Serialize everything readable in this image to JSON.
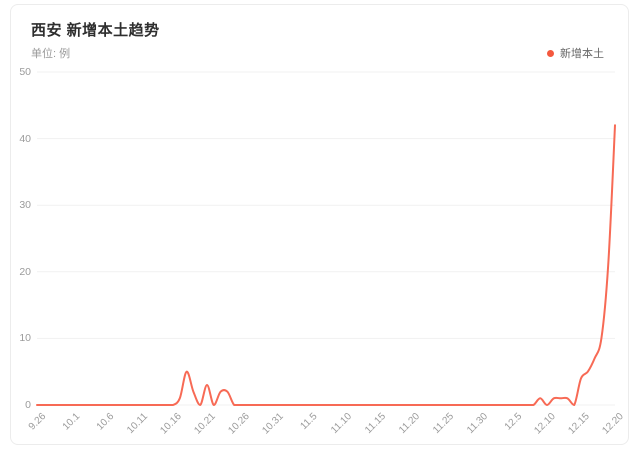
{
  "header": {
    "title": "西安 新增本土趋势",
    "unit_label": "单位: 例"
  },
  "legend": {
    "label": "新增本土",
    "dot_color": "#f4583e"
  },
  "colors": {
    "line": "#f76a55",
    "grid": "#f1f1f1",
    "axis_text": "#9b9b9b",
    "title_text": "#2e2e2e",
    "subtitle_text": "#999999",
    "card_border": "#ececec",
    "background": "#ffffff"
  },
  "chart_data": {
    "type": "line",
    "title": "西安 新增本土趋势",
    "unit_label": "单位: 例",
    "legend_position": "top-right",
    "grid": true,
    "smooth": true,
    "ylim": [
      0,
      50
    ],
    "y_ticks": [
      0,
      10,
      20,
      30,
      40,
      50
    ],
    "x_tick_every": 5,
    "x_tick_labels": [
      "9.26",
      "10.1",
      "10.6",
      "10.11",
      "10.16",
      "10.21",
      "10.26",
      "10.31",
      "11.5",
      "11.10",
      "11.15",
      "11.20",
      "11.25",
      "11.30",
      "12.5",
      "12.10",
      "12.15",
      "12.20"
    ],
    "x": [
      "9.26",
      "9.27",
      "9.28",
      "9.29",
      "9.30",
      "10.1",
      "10.2",
      "10.3",
      "10.4",
      "10.5",
      "10.6",
      "10.7",
      "10.8",
      "10.9",
      "10.10",
      "10.11",
      "10.12",
      "10.13",
      "10.14",
      "10.15",
      "10.16",
      "10.17",
      "10.18",
      "10.19",
      "10.20",
      "10.21",
      "10.22",
      "10.23",
      "10.24",
      "10.25",
      "10.26",
      "10.27",
      "10.28",
      "10.29",
      "10.30",
      "10.31",
      "11.1",
      "11.2",
      "11.3",
      "11.4",
      "11.5",
      "11.6",
      "11.7",
      "11.8",
      "11.9",
      "11.10",
      "11.11",
      "11.12",
      "11.13",
      "11.14",
      "11.15",
      "11.16",
      "11.17",
      "11.18",
      "11.19",
      "11.20",
      "11.21",
      "11.22",
      "11.23",
      "11.24",
      "11.25",
      "11.26",
      "11.27",
      "11.28",
      "11.29",
      "11.30",
      "12.1",
      "12.2",
      "12.3",
      "12.4",
      "12.5",
      "12.6",
      "12.7",
      "12.8",
      "12.9",
      "12.10",
      "12.11",
      "12.12",
      "12.13",
      "12.14",
      "12.15",
      "12.16",
      "12.17",
      "12.18",
      "12.19",
      "12.20"
    ],
    "series": [
      {
        "name": "新增本土",
        "color": "#f76a55",
        "values": [
          0,
          0,
          0,
          0,
          0,
          0,
          0,
          0,
          0,
          0,
          0,
          0,
          0,
          0,
          0,
          0,
          0,
          0,
          0,
          0,
          0,
          1,
          5,
          2,
          0,
          3,
          0,
          2,
          2,
          0,
          0,
          0,
          0,
          0,
          0,
          0,
          0,
          0,
          0,
          0,
          0,
          0,
          0,
          0,
          0,
          0,
          0,
          0,
          0,
          0,
          0,
          0,
          0,
          0,
          0,
          0,
          0,
          0,
          0,
          0,
          0,
          0,
          0,
          0,
          0,
          0,
          0,
          0,
          0,
          0,
          0,
          0,
          0,
          0,
          1,
          0,
          1,
          1,
          1,
          0,
          4,
          5,
          7,
          10,
          21,
          42
        ]
      }
    ]
  }
}
